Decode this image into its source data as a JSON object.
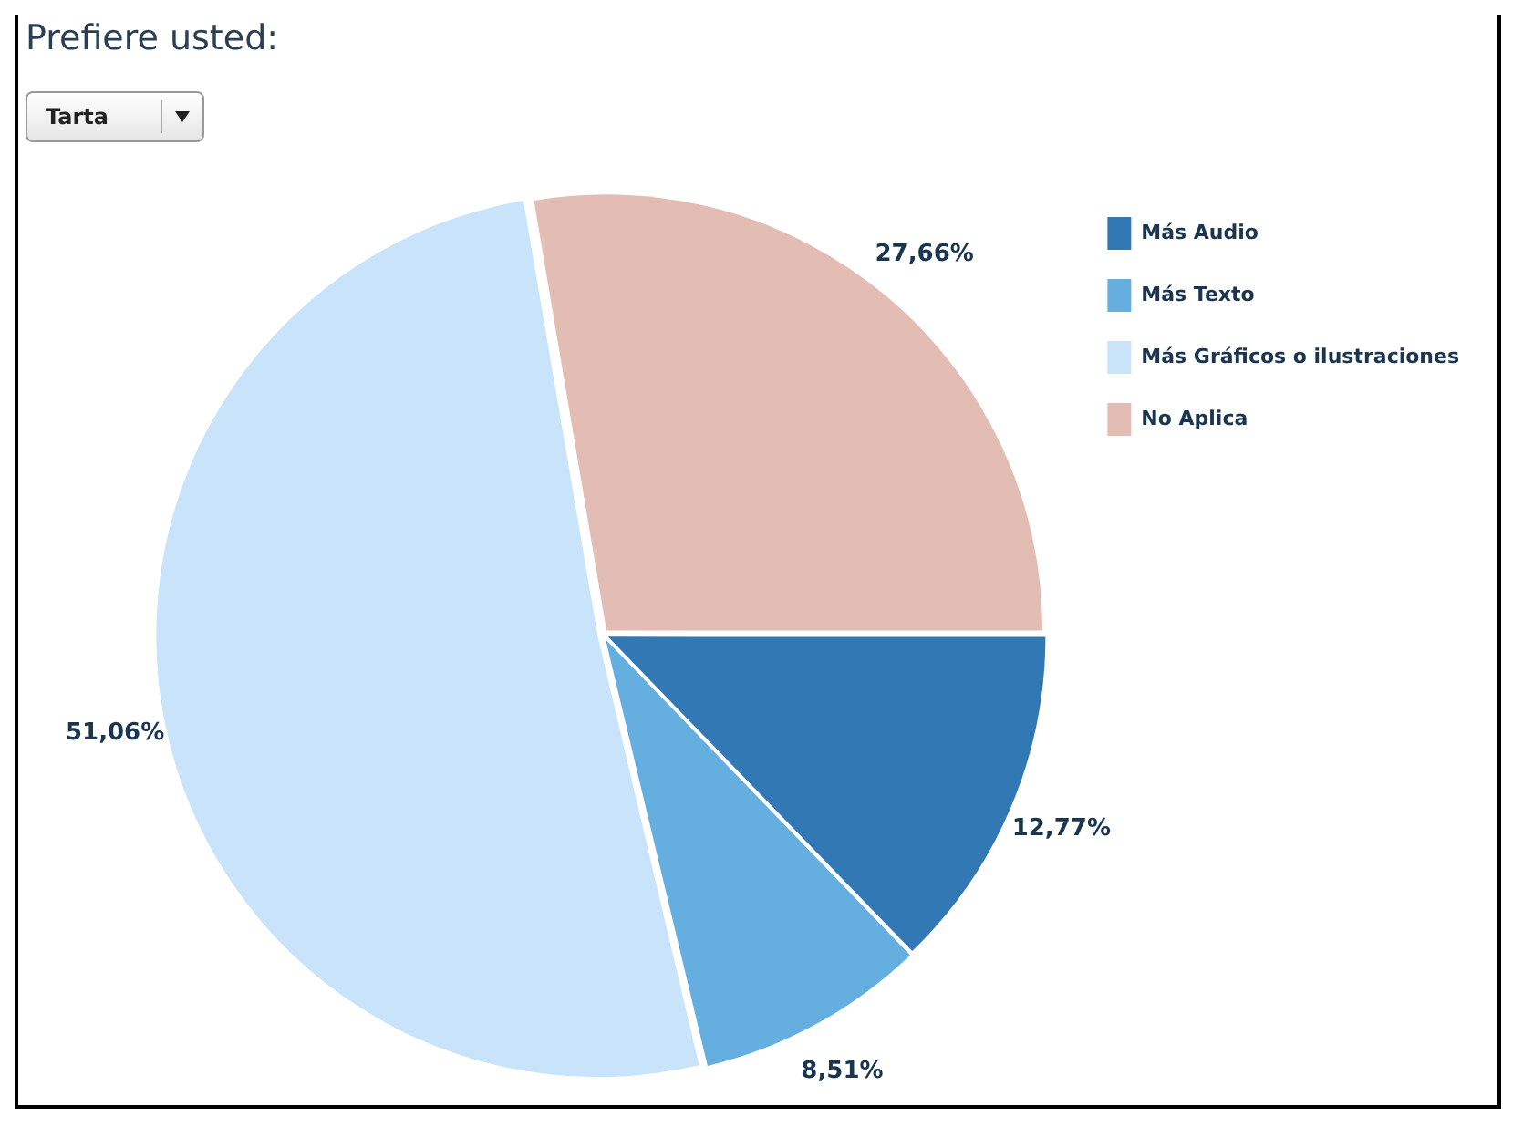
{
  "chart_data": {
    "type": "pie",
    "title": "Prefiere usted:",
    "categories": [
      "Más Audio",
      "Más Texto",
      "Más Gráficos o ilustraciones",
      "No Aplica"
    ],
    "values": [
      12.77,
      8.51,
      51.06,
      27.66
    ],
    "colors": [
      "#3278b4",
      "#64afe0",
      "#c8e3fa",
      "#e3bdb4"
    ],
    "value_labels": [
      "12,77%",
      "8,51%",
      "51,06%",
      "27,66%"
    ],
    "legend": "top right",
    "annotations": [
      "Tarta"
    ]
  }
}
